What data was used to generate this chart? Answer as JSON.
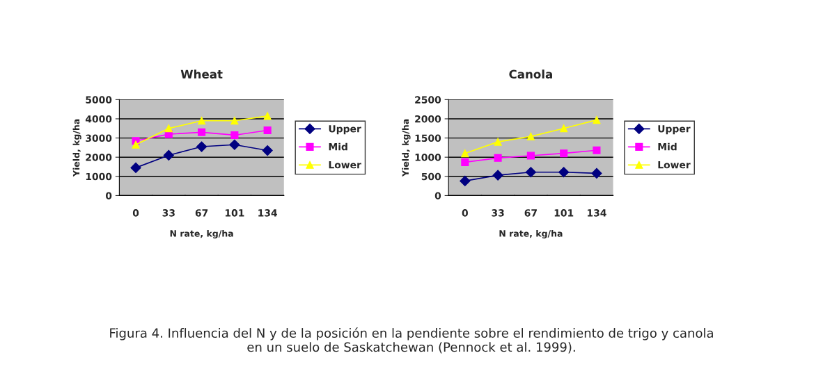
{
  "chart_data": [
    {
      "type": "line",
      "title": "Wheat",
      "xlabel": "N rate, kg/ha",
      "ylabel": "Yield, kg/ha",
      "categories": [
        "0",
        "33",
        "67",
        "101",
        "134"
      ],
      "ylim": [
        0,
        5000
      ],
      "yticks": [
        0,
        1000,
        2000,
        3000,
        4000,
        5000
      ],
      "grid": "y",
      "legend": "right",
      "annotations": [
        "Figura 4. Influencia del N y de la posición en la pendiente sobre el rendimiento de trigo y canola\nen un suelo de Saskatchewan (Pennock et al. 1999)."
      ],
      "series": [
        {
          "name": "Upper",
          "color": "#000080",
          "marker": "diamond",
          "values": [
            1450,
            2100,
            2550,
            2650,
            2350
          ]
        },
        {
          "name": "Mid",
          "color": "#ff00ff",
          "marker": "square",
          "values": [
            2850,
            3200,
            3300,
            3150,
            3400
          ]
        },
        {
          "name": "Lower",
          "color": "#ffff00",
          "marker": "triangle",
          "values": [
            2650,
            3500,
            3900,
            3900,
            4150
          ]
        }
      ]
    },
    {
      "type": "line",
      "title": "Canola",
      "xlabel": "N rate, kg/ha",
      "ylabel": "Yield, kg/ha",
      "categories": [
        "0",
        "33",
        "67",
        "101",
        "134"
      ],
      "ylim": [
        0,
        2500
      ],
      "yticks": [
        0,
        500,
        1000,
        1500,
        2000,
        2500
      ],
      "grid": "y",
      "legend": "right",
      "series": [
        {
          "name": "Upper",
          "color": "#000080",
          "marker": "diamond",
          "values": [
            380,
            530,
            610,
            610,
            580
          ]
        },
        {
          "name": "Mid",
          "color": "#ff00ff",
          "marker": "square",
          "values": [
            870,
            980,
            1040,
            1100,
            1180
          ]
        },
        {
          "name": "Lower",
          "color": "#ffff00",
          "marker": "triangle",
          "values": [
            1100,
            1400,
            1540,
            1750,
            1970
          ]
        }
      ]
    }
  ]
}
